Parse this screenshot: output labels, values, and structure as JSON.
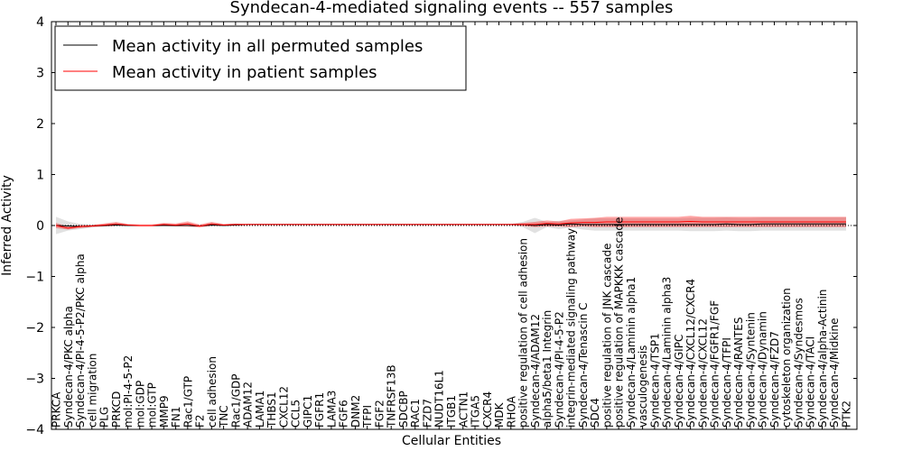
{
  "chart_data": {
    "type": "line",
    "title": "Syndecan-4-mediated signaling events -- 557 samples",
    "xlabel": "Cellular Entities",
    "ylabel": "Inferred Activity",
    "ylim": [
      -4,
      4
    ],
    "yticks": [
      "4",
      "3",
      "2",
      "1",
      "0",
      "−1",
      "−2",
      "−3",
      "−4"
    ],
    "ytick_values": [
      4,
      3,
      2,
      1,
      0,
      -1,
      -2,
      -3,
      -4
    ],
    "legend": {
      "placement": "top-left",
      "entries": [
        {
          "label": "Mean activity in all permuted samples",
          "color": "#000000"
        },
        {
          "label": "Mean activity in patient samples",
          "color": "#ff0000"
        }
      ]
    },
    "categories": [
      "PRKCA",
      "Syndecan-4/PKC alpha",
      "Syndecan-4/PI-4-5-P2/PKC alpha",
      "cell migration",
      "PLG",
      "PRKCD",
      "mol:PI-4-5-P2",
      "mol:GDP",
      "mol:GTP",
      "MMP9",
      "FN1",
      "Rac1/GTP",
      "F2",
      "cell adhesion",
      "TNC",
      "Rac1/GDP",
      "ADAM12",
      "LAMA1",
      "THBS1",
      "CXCL12",
      "CCL5",
      "GIPC1",
      "FGFR1",
      "LAMA3",
      "FGF6",
      "DNM2",
      "TFPI",
      "FGF2",
      "TNFRSF13B",
      "SDCBP",
      "RAC1",
      "FZD7",
      "NUDT16L1",
      "ITGB1",
      "ACTN1",
      "ITGA5",
      "CXCR4",
      "MDK",
      "RHOA",
      "positive regulation of cell adhesion",
      "Syndecan-4/ADAM12",
      "alpha5/beta1 Integrin",
      "Syndecan-4/PI-4-5-P2",
      "integrin-mediated signaling pathway",
      "Syndecan-4/Tenascin C",
      "SDC4",
      "positive regulation of JNK cascade",
      "positive regulation of MAPKKK cascade",
      "Syndecan-4/Laminin alpha1",
      "vasculogenesis",
      "Syndecan-4/TSP1",
      "Syndecan-4/Laminin alpha3",
      "Syndecan-4/GIPC",
      "Syndecan-4/CXCL12/CXCR4",
      "Syndecan-4/CXCL12",
      "Syndecan-4/FGFR1/FGF",
      "Syndecan-4/TFPI",
      "Syndecan-4/RANTES",
      "Syndecan-4/Syntenin",
      "Syndecan-4/Dynamin",
      "Syndecan-4/FZD7",
      "cytoskeleton organization",
      "Syndecan-4/Syndesmos",
      "Syndecan-4/TACI",
      "Syndecan-4/alpha-Actinin",
      "Syndecan-4/Midkine",
      "PTK2"
    ],
    "series": [
      {
        "name": "Mean activity in all permuted samples",
        "color": "#000000",
        "values": [
          0.0,
          -0.01,
          -0.02,
          -0.01,
          0.0,
          0.01,
          0.0,
          0.0,
          0.0,
          0.0,
          0.0,
          0.0,
          -0.01,
          0.01,
          0.0,
          0.01,
          0.02,
          0.02,
          0.02,
          0.02,
          0.02,
          0.02,
          0.02,
          0.02,
          0.02,
          0.02,
          0.02,
          0.02,
          0.02,
          0.02,
          0.02,
          0.02,
          0.02,
          0.02,
          0.02,
          0.02,
          0.02,
          0.02,
          0.02,
          0.02,
          0.0,
          0.02,
          0.01,
          0.03,
          0.02,
          0.02,
          0.02,
          0.02,
          0.02,
          0.02,
          0.02,
          0.02,
          0.02,
          0.02,
          0.02,
          0.02,
          0.03,
          0.02,
          0.02,
          0.03,
          0.03,
          0.03,
          0.03,
          0.03,
          0.03,
          0.03,
          0.03
        ],
        "band": [
          0.17,
          0.09,
          0.05,
          0.03,
          0.02,
          0.02,
          0.01,
          0.01,
          0.01,
          0.01,
          0.01,
          0.01,
          0.01,
          0.01,
          0.01,
          0.01,
          0.01,
          0.01,
          0.01,
          0.01,
          0.01,
          0.01,
          0.01,
          0.01,
          0.01,
          0.01,
          0.01,
          0.01,
          0.01,
          0.01,
          0.01,
          0.01,
          0.01,
          0.01,
          0.01,
          0.01,
          0.01,
          0.01,
          0.01,
          0.05,
          0.15,
          0.05,
          0.08,
          0.07,
          0.1,
          0.12,
          0.12,
          0.12,
          0.12,
          0.12,
          0.12,
          0.12,
          0.12,
          0.13,
          0.13,
          0.13,
          0.13,
          0.13,
          0.13,
          0.13,
          0.13,
          0.13,
          0.13,
          0.13,
          0.13,
          0.13,
          0.13
        ]
      },
      {
        "name": "Mean activity in patient samples",
        "color": "#ff0000",
        "values": [
          0.0,
          -0.05,
          -0.02,
          -0.01,
          0.01,
          0.03,
          0.01,
          0.0,
          0.0,
          0.02,
          0.01,
          0.03,
          -0.01,
          0.03,
          0.01,
          0.02,
          0.02,
          0.02,
          0.02,
          0.02,
          0.02,
          0.02,
          0.02,
          0.02,
          0.02,
          0.02,
          0.02,
          0.02,
          0.02,
          0.02,
          0.02,
          0.02,
          0.02,
          0.02,
          0.02,
          0.02,
          0.02,
          0.02,
          0.02,
          0.02,
          0.02,
          0.04,
          0.03,
          0.05,
          0.06,
          0.06,
          0.07,
          0.07,
          0.07,
          0.07,
          0.07,
          0.07,
          0.07,
          0.08,
          0.07,
          0.07,
          0.07,
          0.07,
          0.07,
          0.07,
          0.07,
          0.07,
          0.07,
          0.07,
          0.07,
          0.07,
          0.07
        ],
        "band": [
          0.05,
          0.03,
          0.03,
          0.02,
          0.03,
          0.04,
          0.02,
          0.02,
          0.02,
          0.03,
          0.03,
          0.05,
          0.03,
          0.04,
          0.02,
          0.02,
          0.01,
          0.01,
          0.01,
          0.01,
          0.01,
          0.01,
          0.01,
          0.01,
          0.01,
          0.01,
          0.01,
          0.01,
          0.01,
          0.01,
          0.01,
          0.01,
          0.01,
          0.01,
          0.01,
          0.01,
          0.01,
          0.01,
          0.01,
          0.03,
          0.05,
          0.06,
          0.05,
          0.08,
          0.08,
          0.09,
          0.1,
          0.1,
          0.1,
          0.1,
          0.1,
          0.1,
          0.1,
          0.11,
          0.1,
          0.1,
          0.1,
          0.1,
          0.1,
          0.1,
          0.1,
          0.1,
          0.1,
          0.1,
          0.1,
          0.1,
          0.1
        ]
      }
    ]
  }
}
